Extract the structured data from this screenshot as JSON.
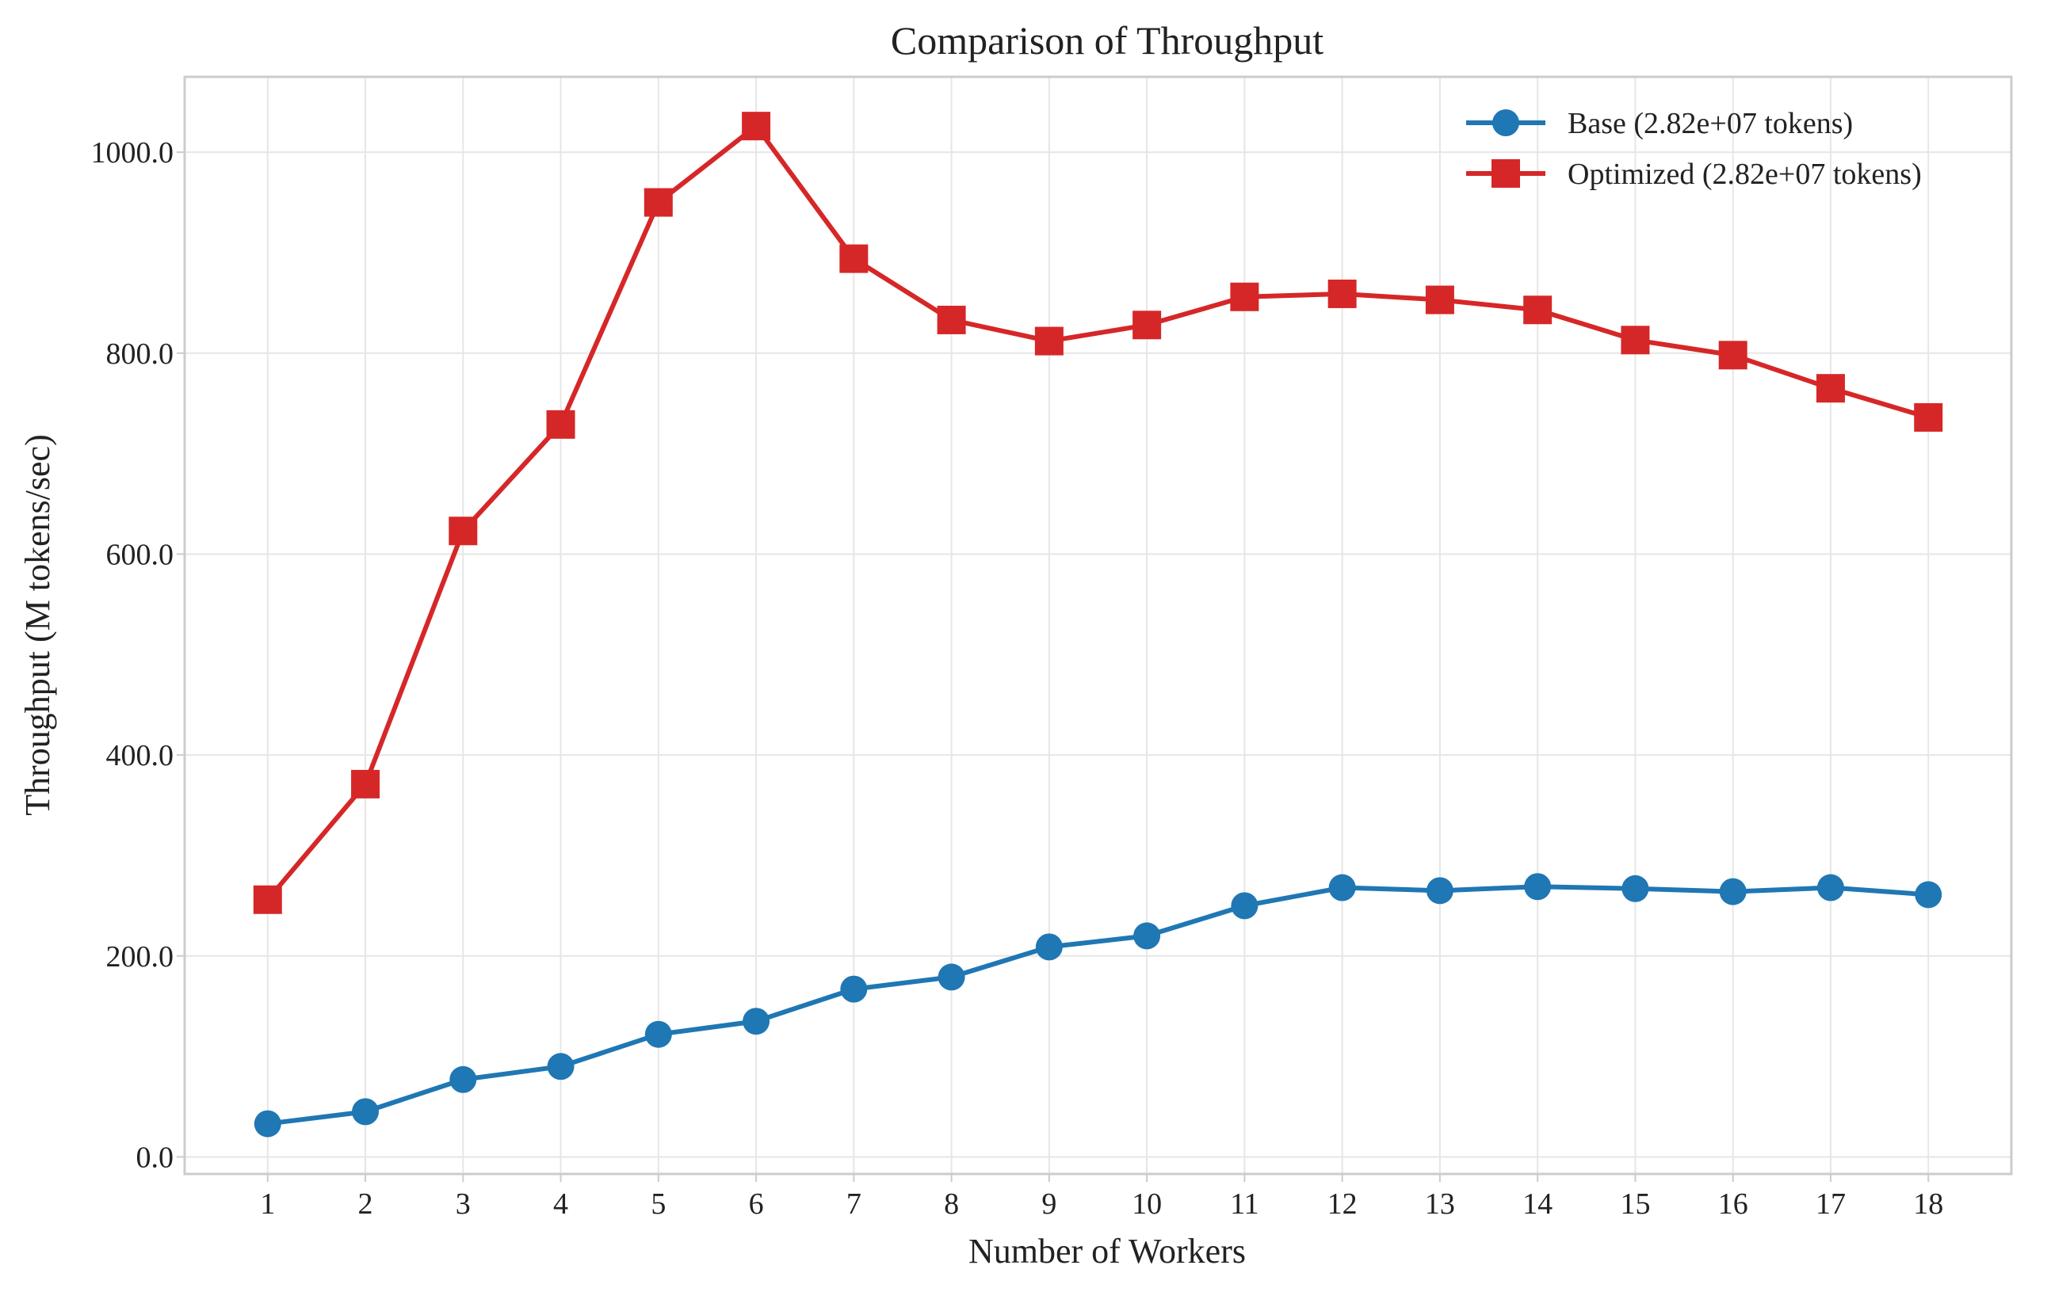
{
  "chart_data": {
    "type": "line",
    "title": "Comparison of Throughput",
    "xlabel": "Number of Workers",
    "ylabel": "Throughput (M tokens/sec)",
    "x": [
      1,
      2,
      3,
      4,
      5,
      6,
      7,
      8,
      9,
      10,
      11,
      12,
      13,
      14,
      15,
      16,
      17,
      18
    ],
    "xlim": [
      0.15,
      18.85
    ],
    "ylim": [
      -17,
      1075
    ],
    "yticks": [
      0,
      200,
      400,
      600,
      800,
      1000
    ],
    "ytick_labels": [
      "0.0",
      "200.0",
      "400.0",
      "600.0",
      "800.0",
      "1000.0"
    ],
    "xtick_labels": [
      "1",
      "2",
      "3",
      "4",
      "5",
      "6",
      "7",
      "8",
      "9",
      "10",
      "11",
      "12",
      "13",
      "14",
      "15",
      "16",
      "17",
      "18"
    ],
    "grid": true,
    "legend_position": "top-right",
    "series": [
      {
        "name": "Base (2.82e+07 tokens)",
        "color": "#1f77b4",
        "marker": "circle",
        "values": [
          33,
          45,
          77,
          90,
          122,
          135,
          167,
          179,
          209,
          220,
          250,
          268,
          265,
          269,
          267,
          264,
          268,
          261
        ]
      },
      {
        "name": "Optimized (2.82e+07 tokens)",
        "color": "#d62728",
        "marker": "square",
        "values": [
          256,
          371,
          623,
          729,
          950,
          1026,
          894,
          833,
          812,
          828,
          856,
          859,
          853,
          843,
          813,
          798,
          765,
          736
        ]
      }
    ]
  }
}
